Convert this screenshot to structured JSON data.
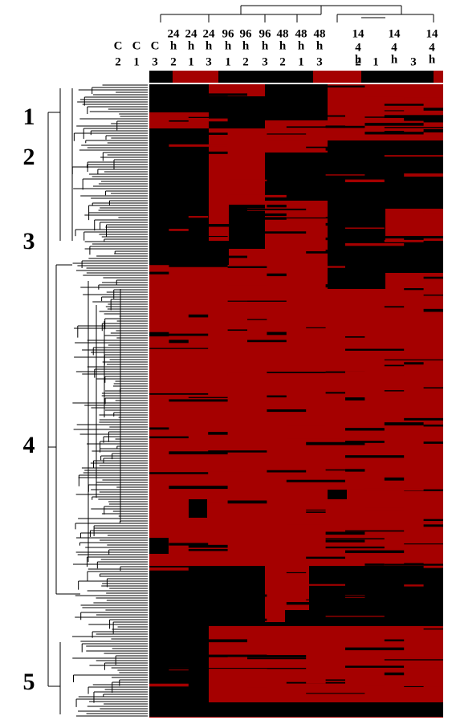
{
  "figure": {
    "columns": [
      {
        "top": null,
        "symbol": "C",
        "rep": "2"
      },
      {
        "top": null,
        "symbol": "C",
        "rep": "1"
      },
      {
        "top": null,
        "symbol": "C",
        "rep": "3"
      },
      {
        "top": "24",
        "symbol": "h",
        "rep": "2"
      },
      {
        "top": "24",
        "symbol": "h",
        "rep": "1"
      },
      {
        "top": "24",
        "symbol": "h",
        "rep": "3"
      },
      {
        "top": "96",
        "symbol": "h",
        "rep": "1"
      },
      {
        "top": "96",
        "symbol": "h",
        "rep": "2"
      },
      {
        "top": "96",
        "symbol": "h",
        "rep": "3"
      },
      {
        "top": "48",
        "symbol": "h",
        "rep": "2"
      },
      {
        "top": "48",
        "symbol": "h",
        "rep": "1"
      },
      {
        "top": "48",
        "symbol": "h",
        "rep": "3"
      },
      {
        "top": "14",
        "mid": "4",
        "symbol": "h",
        "rep": "2"
      },
      {
        "top": null,
        "symbol": null,
        "rep": "1"
      },
      {
        "top": "14",
        "mid": "4",
        "symbol": "h",
        "rep": null
      },
      {
        "top": null,
        "symbol": null,
        "rep": "3"
      },
      {
        "top": "14",
        "mid": "4",
        "symbol": "h",
        "rep": null
      }
    ],
    "clusters": [
      "1",
      "2",
      "3",
      "4",
      "5"
    ]
  }
}
